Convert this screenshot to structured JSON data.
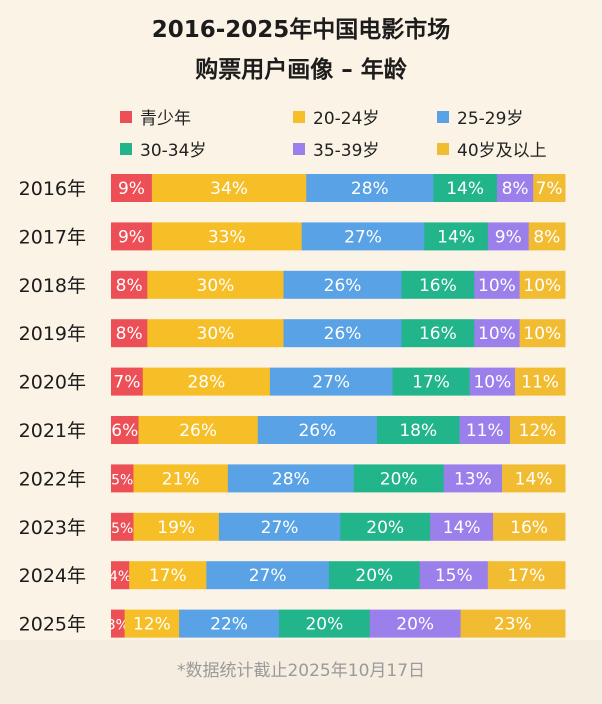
{
  "title_line1": "2016-2025年中国电影市场",
  "title_line2": "购票用户画像 – 年龄",
  "footnote": "*数据统计截止2025年10月17日",
  "legend": [
    {
      "label": "青少年",
      "color": "#ec5056"
    },
    {
      "label": "20-24岁",
      "color": "#f6be27"
    },
    {
      "label": "25-29岁",
      "color": "#5aa2e6"
    },
    {
      "label": "30-34岁",
      "color": "#22b48b"
    },
    {
      "label": "35-39岁",
      "color": "#9b80ec"
    },
    {
      "label": "40岁及以上",
      "color": "#f2bc32"
    }
  ],
  "chart_data": {
    "type": "bar",
    "orientation": "horizontal",
    "stacked": true,
    "percent": true,
    "title": "2016-2025年中国电影市场 购票用户画像 – 年龄",
    "categories": [
      "2016年",
      "2017年",
      "2018年",
      "2019年",
      "2020年",
      "2021年",
      "2022年",
      "2023年",
      "2024年",
      "2025年"
    ],
    "series": [
      {
        "name": "青少年",
        "color": "#ec5056",
        "values": [
          9,
          9,
          8,
          8,
          7,
          6,
          5,
          5,
          4,
          3
        ],
        "labels": [
          "9%",
          "9%",
          "8%",
          "8%",
          "7%",
          "6%",
          "5%",
          "5%",
          "4%",
          "3%"
        ]
      },
      {
        "name": "20-24岁",
        "color": "#f6be27",
        "values": [
          34,
          33,
          30,
          30,
          28,
          26,
          21,
          19,
          17,
          12
        ],
        "labels": [
          "34%",
          "33%",
          "30%",
          "30%",
          "28%",
          "26%",
          "21%",
          "19%",
          "17%",
          "12%"
        ]
      },
      {
        "name": "25-29岁",
        "color": "#5aa2e6",
        "values": [
          28,
          27,
          26,
          26,
          27,
          26,
          28,
          27,
          27,
          22
        ],
        "labels": [
          "28%",
          "27%",
          "26%",
          "26%",
          "27%",
          "26%",
          "28%",
          "27%",
          "27%",
          "22%"
        ]
      },
      {
        "name": "30-34岁",
        "color": "#22b48b",
        "values": [
          14,
          14,
          16,
          16,
          17,
          18,
          20,
          20,
          20,
          20
        ],
        "labels": [
          "14%",
          "14%",
          "16%",
          "16%",
          "17%",
          "18%",
          "20%",
          "20%",
          "20%",
          "20%"
        ]
      },
      {
        "name": "35-39岁",
        "color": "#9b80ec",
        "values": [
          8,
          9,
          10,
          10,
          10,
          11,
          13,
          14,
          15,
          20
        ],
        "labels": [
          "8%",
          "9%",
          "10%",
          "10%",
          "10%",
          "11%",
          "13%",
          "14%",
          "15%",
          "20%"
        ]
      },
      {
        "name": "40岁及以上",
        "color": "#f2bc32",
        "values": [
          7,
          8,
          10,
          10,
          11,
          12,
          14,
          16,
          17,
          23
        ],
        "labels": [
          "7%",
          "8%",
          "10%",
          "10%",
          "11%",
          "12%",
          "14%",
          "16%",
          "17%",
          "23%"
        ]
      }
    ],
    "xlim": [
      0,
      100
    ],
    "legend_position": "top"
  }
}
